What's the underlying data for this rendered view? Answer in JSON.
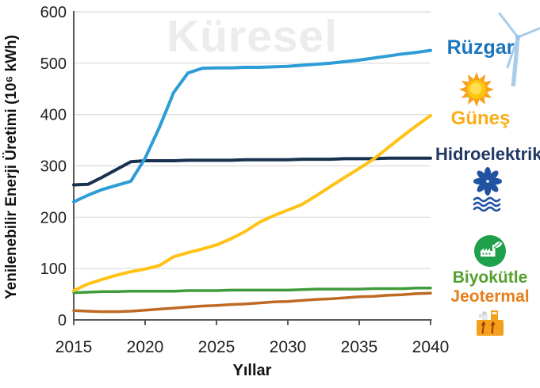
{
  "watermark": "Küresel",
  "axes": {
    "y_title": "Yenilenebilir Enerji Üretimi (10⁶ kWh)",
    "x_title": "Yıllar"
  },
  "legend": {
    "position": "right",
    "items": [
      {
        "label": "Rüzgar",
        "color": "#1B75BC",
        "icon": "wind-turbine-icon"
      },
      {
        "label": "Güneş",
        "color": "#FBAD18",
        "icon": "sun-icon"
      },
      {
        "label": "Hidroelektrik",
        "color": "#1F3864",
        "icon": "water-icon"
      },
      {
        "label": "Biyokütle",
        "color": "#55A02F",
        "icon": "biomass-icon"
      },
      {
        "label": "Jeotermal",
        "color": "#E67E1B",
        "icon": "geothermal-icon"
      }
    ]
  },
  "chart_data": {
    "type": "line",
    "title": "",
    "watermark": "Küresel",
    "xlabel": "Yıllar",
    "ylabel": "Yenilenebilir Enerji Üretimi (10⁶ kWh)",
    "xlim": [
      2015,
      2040
    ],
    "ylim": [
      0,
      600
    ],
    "xticks": [
      2015,
      2020,
      2025,
      2030,
      2035,
      2040
    ],
    "yticks": [
      0,
      100,
      200,
      300,
      400,
      500,
      600
    ],
    "grid": "horizontal",
    "gridline_color": "#DADADA",
    "axis_color": "#595959",
    "tick_label_color": "#1F1F1F",
    "legend_position": "right",
    "x": [
      2015,
      2016,
      2017,
      2018,
      2019,
      2020,
      2021,
      2022,
      2023,
      2024,
      2025,
      2026,
      2027,
      2028,
      2029,
      2030,
      2031,
      2032,
      2033,
      2034,
      2035,
      2036,
      2037,
      2038,
      2039,
      2040
    ],
    "series": [
      {
        "name": "Hidroelektrik",
        "key": "hydro",
        "color": "#16324F",
        "width": 4,
        "values": [
          263,
          264,
          278,
          293,
          308,
          310,
          310,
          310,
          311,
          311,
          311,
          311,
          312,
          312,
          312,
          312,
          313,
          313,
          313,
          314,
          314,
          314,
          315,
          315,
          315,
          315
        ]
      },
      {
        "name": "Biyokütle",
        "key": "biomass",
        "color": "#3F9B3C",
        "width": 3.5,
        "values": [
          53,
          54,
          55,
          55,
          56,
          56,
          56,
          56,
          57,
          57,
          57,
          58,
          58,
          58,
          58,
          58,
          59,
          60,
          60,
          60,
          60,
          61,
          61,
          61,
          62,
          62
        ]
      },
      {
        "name": "Jeotermal",
        "key": "geothermal",
        "color": "#BE6A24",
        "width": 3.5,
        "values": [
          18,
          17,
          16,
          16,
          17,
          19,
          21,
          23,
          25,
          27,
          28,
          30,
          31,
          33,
          35,
          36,
          38,
          40,
          41,
          43,
          45,
          46,
          48,
          49,
          51,
          52
        ]
      },
      {
        "name": "Güneş",
        "key": "solar",
        "color": "#FFC215",
        "width": 4,
        "values": [
          57,
          70,
          79,
          87,
          94,
          99,
          106,
          123,
          131,
          138,
          146,
          158,
          172,
          190,
          203,
          214,
          225,
          242,
          260,
          278,
          295,
          313,
          335,
          357,
          378,
          398
        ]
      },
      {
        "name": "Rüzgar",
        "key": "wind",
        "color": "#2E9CD6",
        "width": 4,
        "values": [
          230,
          243,
          254,
          262,
          270,
          315,
          375,
          443,
          481,
          490,
          491,
          491,
          492,
          492,
          493,
          494,
          496,
          498,
          500,
          503,
          506,
          510,
          514,
          518,
          521,
          525
        ]
      }
    ]
  }
}
